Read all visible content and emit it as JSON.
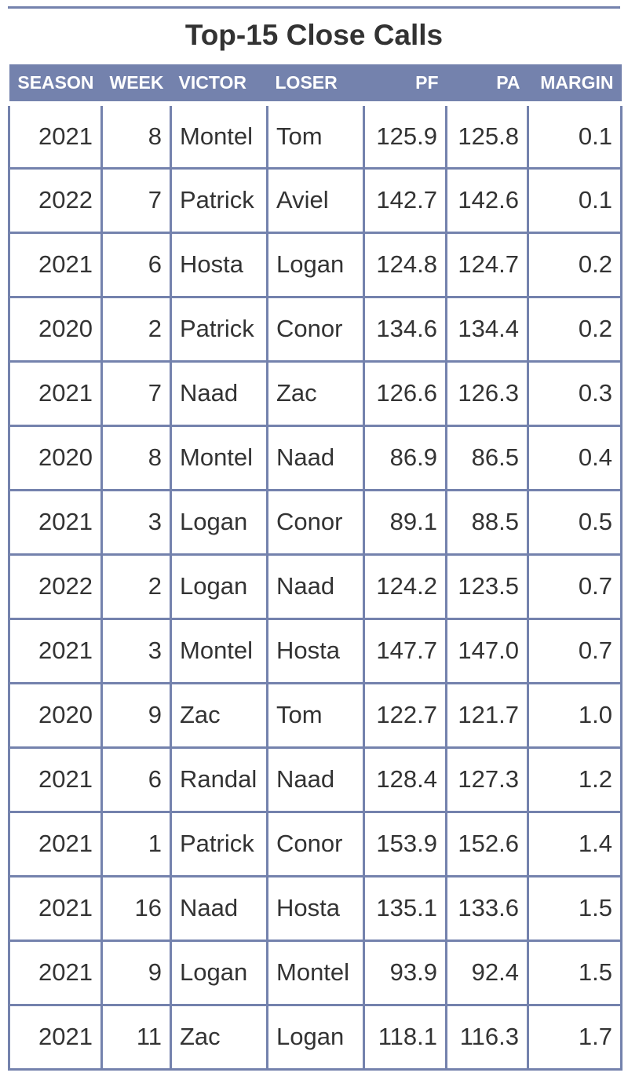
{
  "title": "Top-15 Close Calls",
  "colors": {
    "header_bg": "#7482ad",
    "header_text": "#ffffff",
    "grid": "#7482ad",
    "text": "#333333"
  },
  "columns": [
    "SEASON",
    "WEEK",
    "VICTOR",
    "LOSER",
    "PF",
    "PA",
    "MARGIN"
  ],
  "rows": [
    [
      "2021",
      "8",
      "Montel",
      "Tom",
      "125.9",
      "125.8",
      "0.1"
    ],
    [
      "2022",
      "7",
      "Patrick",
      "Aviel",
      "142.7",
      "142.6",
      "0.1"
    ],
    [
      "2021",
      "6",
      "Hosta",
      "Logan",
      "124.8",
      "124.7",
      "0.2"
    ],
    [
      "2020",
      "2",
      "Patrick",
      "Conor",
      "134.6",
      "134.4",
      "0.2"
    ],
    [
      "2021",
      "7",
      "Naad",
      "Zac",
      "126.6",
      "126.3",
      "0.3"
    ],
    [
      "2020",
      "8",
      "Montel",
      "Naad",
      "86.9",
      "86.5",
      "0.4"
    ],
    [
      "2021",
      "3",
      "Logan",
      "Conor",
      "89.1",
      "88.5",
      "0.5"
    ],
    [
      "2022",
      "2",
      "Logan",
      "Naad",
      "124.2",
      "123.5",
      "0.7"
    ],
    [
      "2021",
      "3",
      "Montel",
      "Hosta",
      "147.7",
      "147.0",
      "0.7"
    ],
    [
      "2020",
      "9",
      "Zac",
      "Tom",
      "122.7",
      "121.7",
      "1.0"
    ],
    [
      "2021",
      "6",
      "Randal",
      "Naad",
      "128.4",
      "127.3",
      "1.2"
    ],
    [
      "2021",
      "1",
      "Patrick",
      "Conor",
      "153.9",
      "152.6",
      "1.4"
    ],
    [
      "2021",
      "16",
      "Naad",
      "Hosta",
      "135.1",
      "133.6",
      "1.5"
    ],
    [
      "2021",
      "9",
      "Logan",
      "Montel",
      "93.9",
      "92.4",
      "1.5"
    ],
    [
      "2021",
      "11",
      "Zac",
      "Logan",
      "118.1",
      "116.3",
      "1.7"
    ]
  ]
}
